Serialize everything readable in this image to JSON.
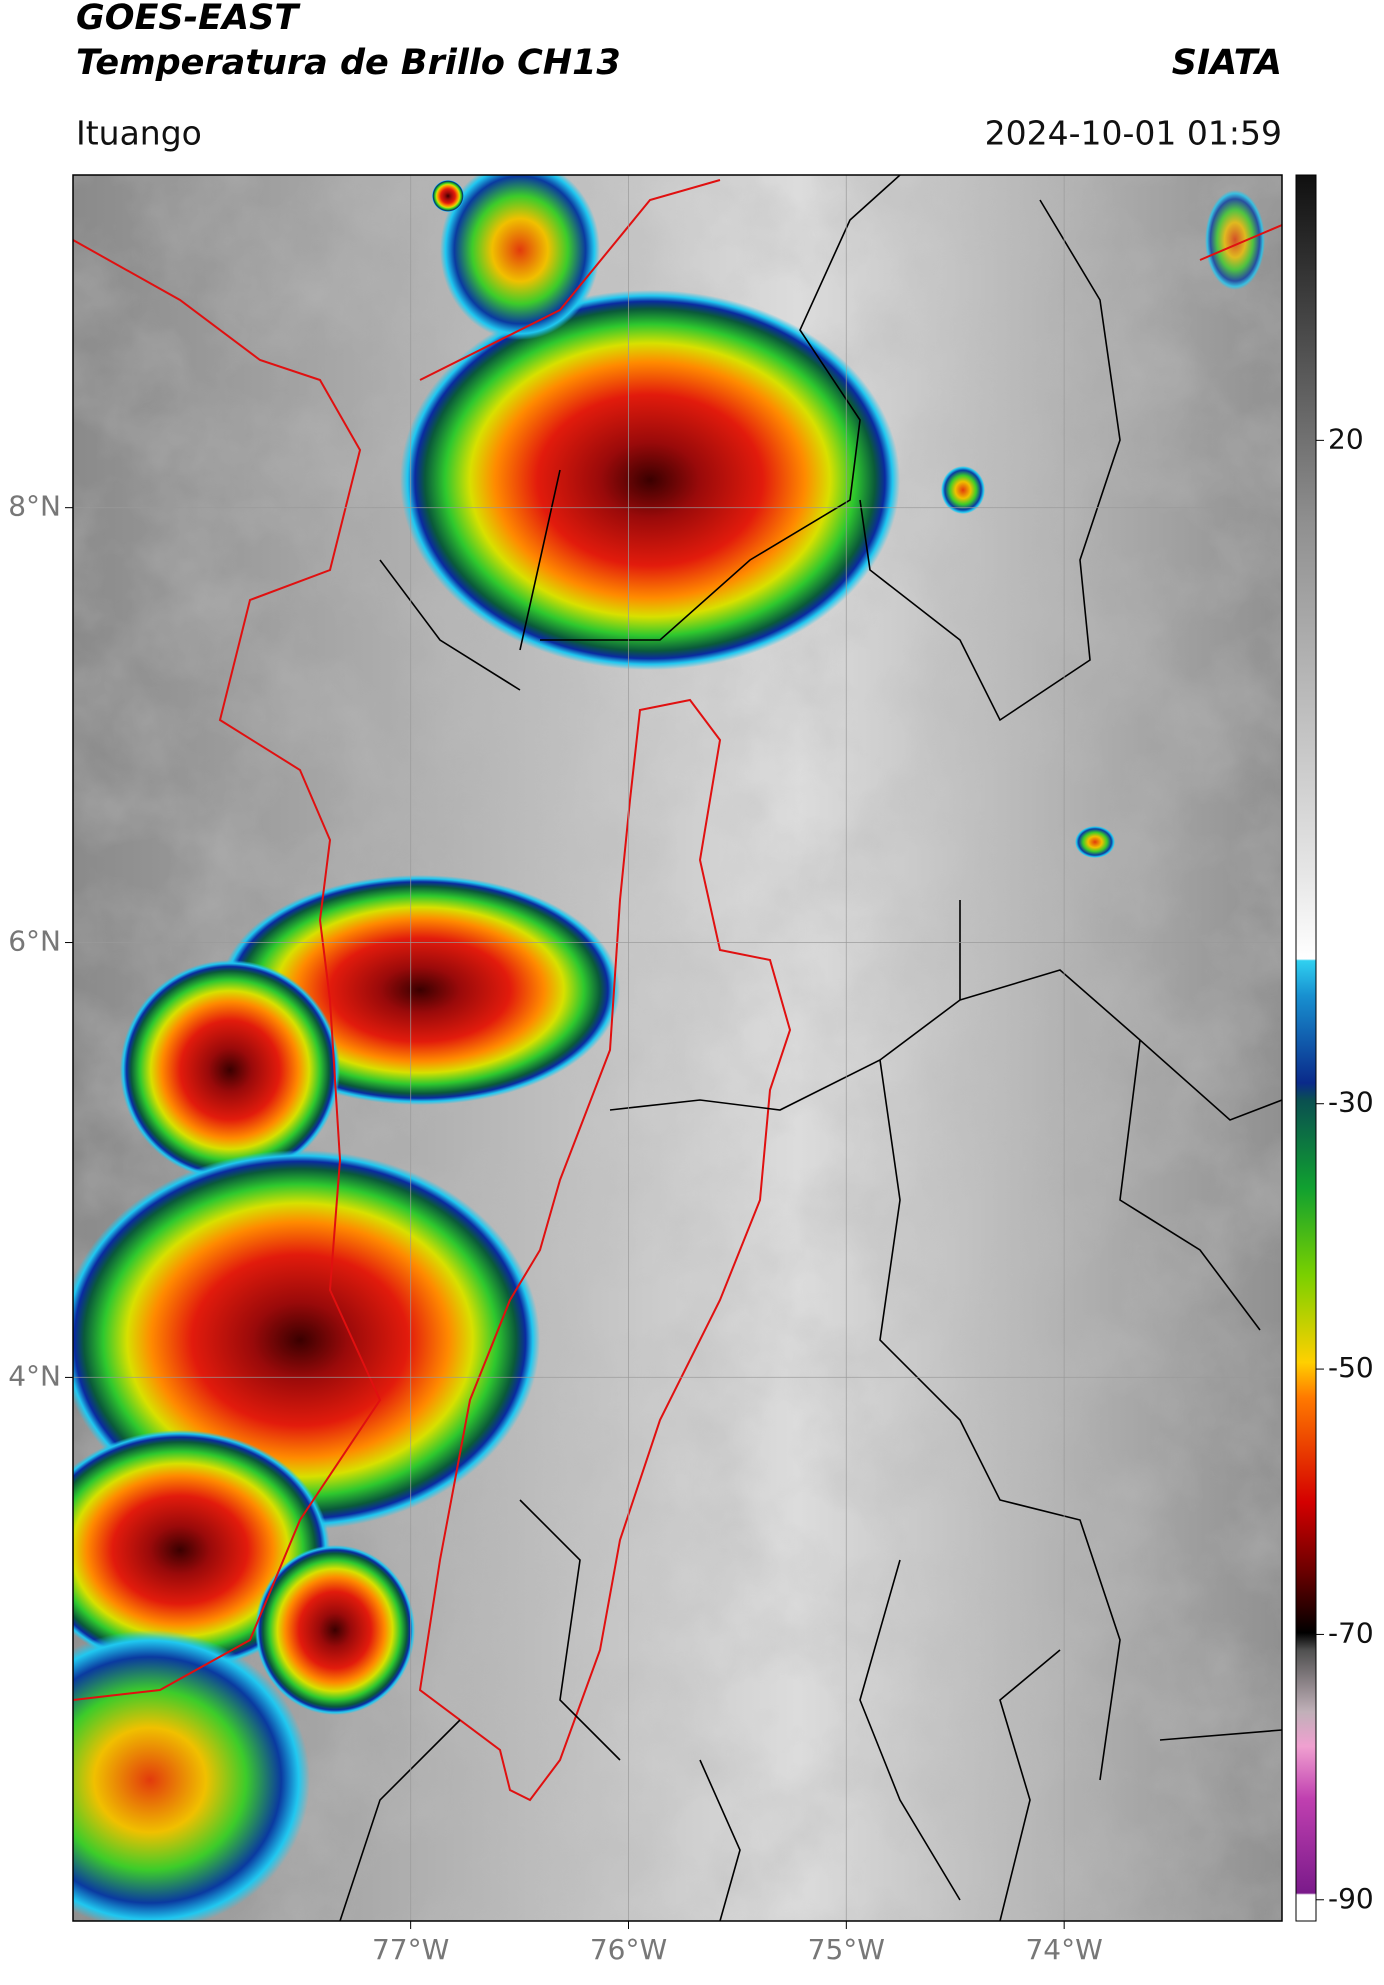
{
  "header": {
    "title": "GOES-EAST",
    "subtitle": "Temperatura de Brillo CH13",
    "source": "SIATA",
    "location": "Ituango",
    "datetime": "2024-10-01 01:59"
  },
  "map": {
    "xlim": [
      -78.55,
      -73.0
    ],
    "ylim": [
      1.5,
      9.53
    ],
    "yticks": [
      {
        "value": 8,
        "label": "8°N"
      },
      {
        "value": 6,
        "label": "6°N"
      },
      {
        "value": 4,
        "label": "4°N"
      }
    ],
    "xticks": [
      {
        "value": -77,
        "label": "77°W"
      },
      {
        "value": -76,
        "label": "76°W"
      },
      {
        "value": -75,
        "label": "75°W"
      },
      {
        "value": -74,
        "label": "74°W"
      }
    ],
    "grid": true
  },
  "colorbar": {
    "lim": [
      -91.6,
      40
    ],
    "ticks": [
      20,
      -30,
      -50,
      -70,
      -90
    ]
  }
}
